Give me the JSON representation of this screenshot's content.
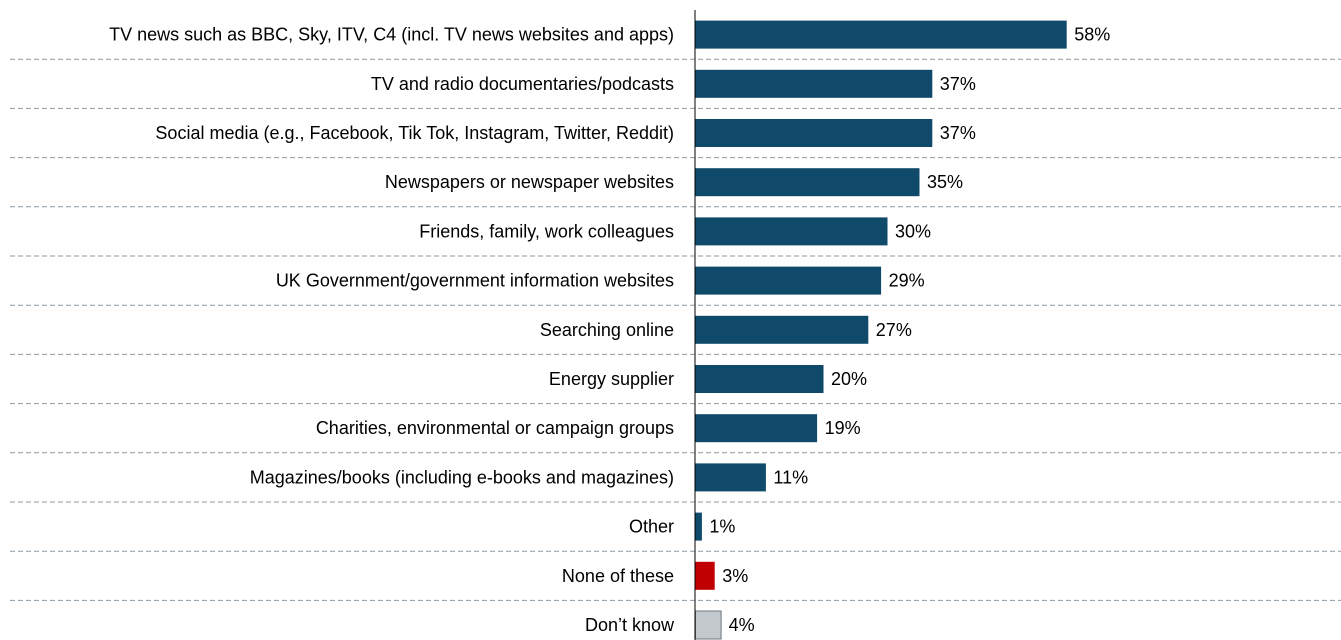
{
  "chart_data": {
    "type": "bar",
    "orientation": "horizontal",
    "categories": [
      "TV news such as BBC, Sky, ITV, C4 (incl. TV news websites and apps)",
      "TV and radio documentaries/podcasts",
      "Social media (e.g., Facebook, Tik Tok, Instagram, Twitter, Reddit)",
      "Newspapers or newspaper websites",
      "Friends, family, work colleagues",
      "UK Government/government information websites",
      "Searching online",
      "Energy supplier",
      "Charities, environmental or campaign groups",
      "Magazines/books (including e-books and magazines)",
      "Other",
      "None of these",
      "Don’t know"
    ],
    "values": [
      58,
      37,
      37,
      35,
      30,
      29,
      27,
      20,
      19,
      11,
      1,
      3,
      4
    ],
    "value_labels": [
      "58%",
      "37%",
      "37%",
      "35%",
      "30%",
      "29%",
      "27%",
      "20%",
      "19%",
      "11%",
      "1%",
      "3%",
      "4%"
    ],
    "bar_colors": [
      "#104a6a",
      "#104a6a",
      "#104a6a",
      "#104a6a",
      "#104a6a",
      "#104a6a",
      "#104a6a",
      "#104a6a",
      "#104a6a",
      "#104a6a",
      "#104a6a",
      "#c00000",
      "#c2c8cc"
    ],
    "xlim": [
      0,
      100
    ],
    "grid": "dashed horizontal separators",
    "gridline_color": "#8c9aa6",
    "axis_color": "#000000",
    "legend": "none"
  }
}
